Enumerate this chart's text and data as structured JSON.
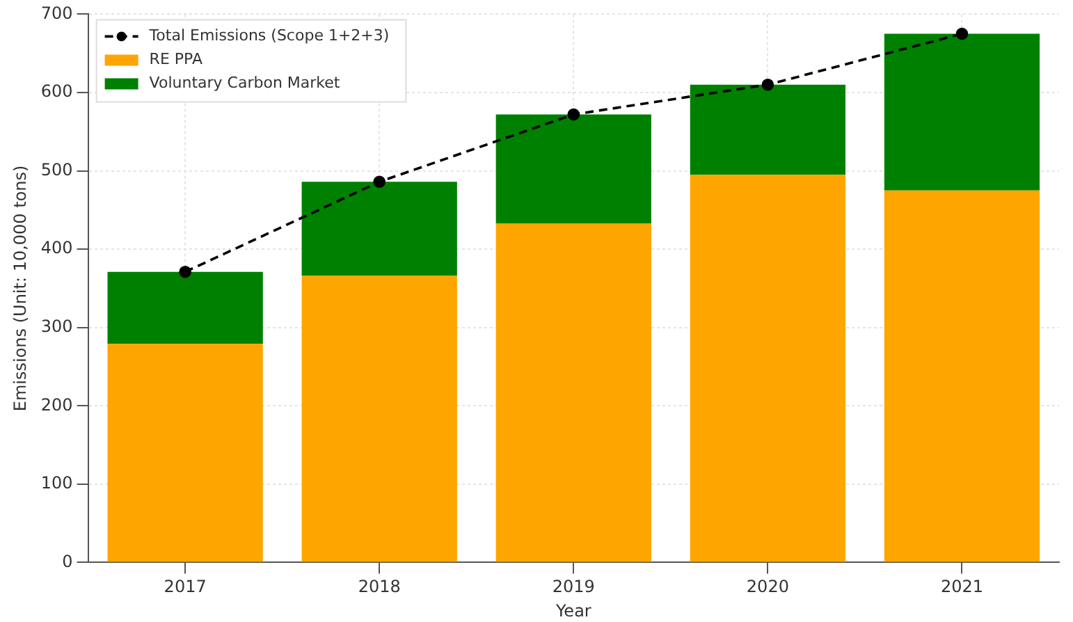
{
  "chart_data": {
    "type": "bar",
    "stacked": true,
    "xlabel": "Year",
    "ylabel": "Emissions (Unit: 10,000 tons)",
    "categories": [
      "2017",
      "2018",
      "2019",
      "2020",
      "2021"
    ],
    "series": [
      {
        "name": "Total Emissions (Scope 1+2+3)",
        "type": "line",
        "color": "#000000",
        "values": [
          371,
          486,
          572,
          610,
          675
        ]
      },
      {
        "name": "RE PPA",
        "color": "#ffa500",
        "values": [
          279,
          366,
          433,
          495,
          475
        ]
      },
      {
        "name": "Voluntary Carbon Market",
        "color": "#008000",
        "values": [
          92,
          120,
          139,
          115,
          200
        ]
      }
    ],
    "ylim": [
      0,
      700
    ],
    "yticks": [
      0,
      100,
      200,
      300,
      400,
      500,
      600,
      700
    ],
    "grid": true,
    "legend": "top left",
    "marker": "circle",
    "line_style": "dashed"
  }
}
